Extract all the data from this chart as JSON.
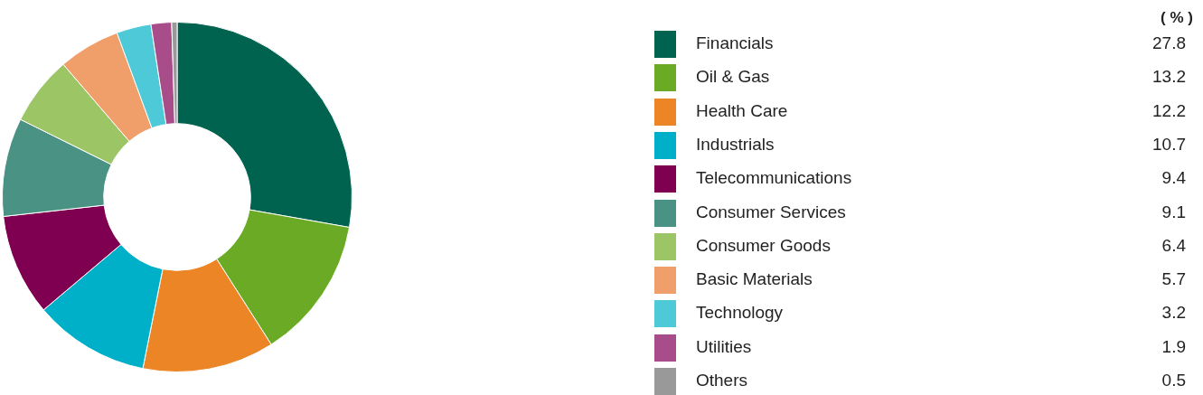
{
  "chart_data": {
    "type": "donut",
    "legend_title": "( % )",
    "legend": "right",
    "data_labels": true,
    "categories": [
      "Financials",
      "Oil & Gas",
      "Health Care",
      "Industrials",
      "Telecommunications",
      "Consumer Services",
      "Consumer Goods",
      "Basic Materials",
      "Technology",
      "Utilities",
      "Others"
    ],
    "values": [
      27.8,
      13.2,
      12.2,
      10.7,
      9.4,
      9.1,
      6.4,
      5.7,
      3.2,
      1.9,
      0.5
    ],
    "colors": [
      "#00634f",
      "#6aaa25",
      "#ec8526",
      "#00b0c8",
      "#7f0050",
      "#4a9284",
      "#9cc566",
      "#f09f6a",
      "#4ec9d8",
      "#a84d8a",
      "#999999"
    ]
  }
}
